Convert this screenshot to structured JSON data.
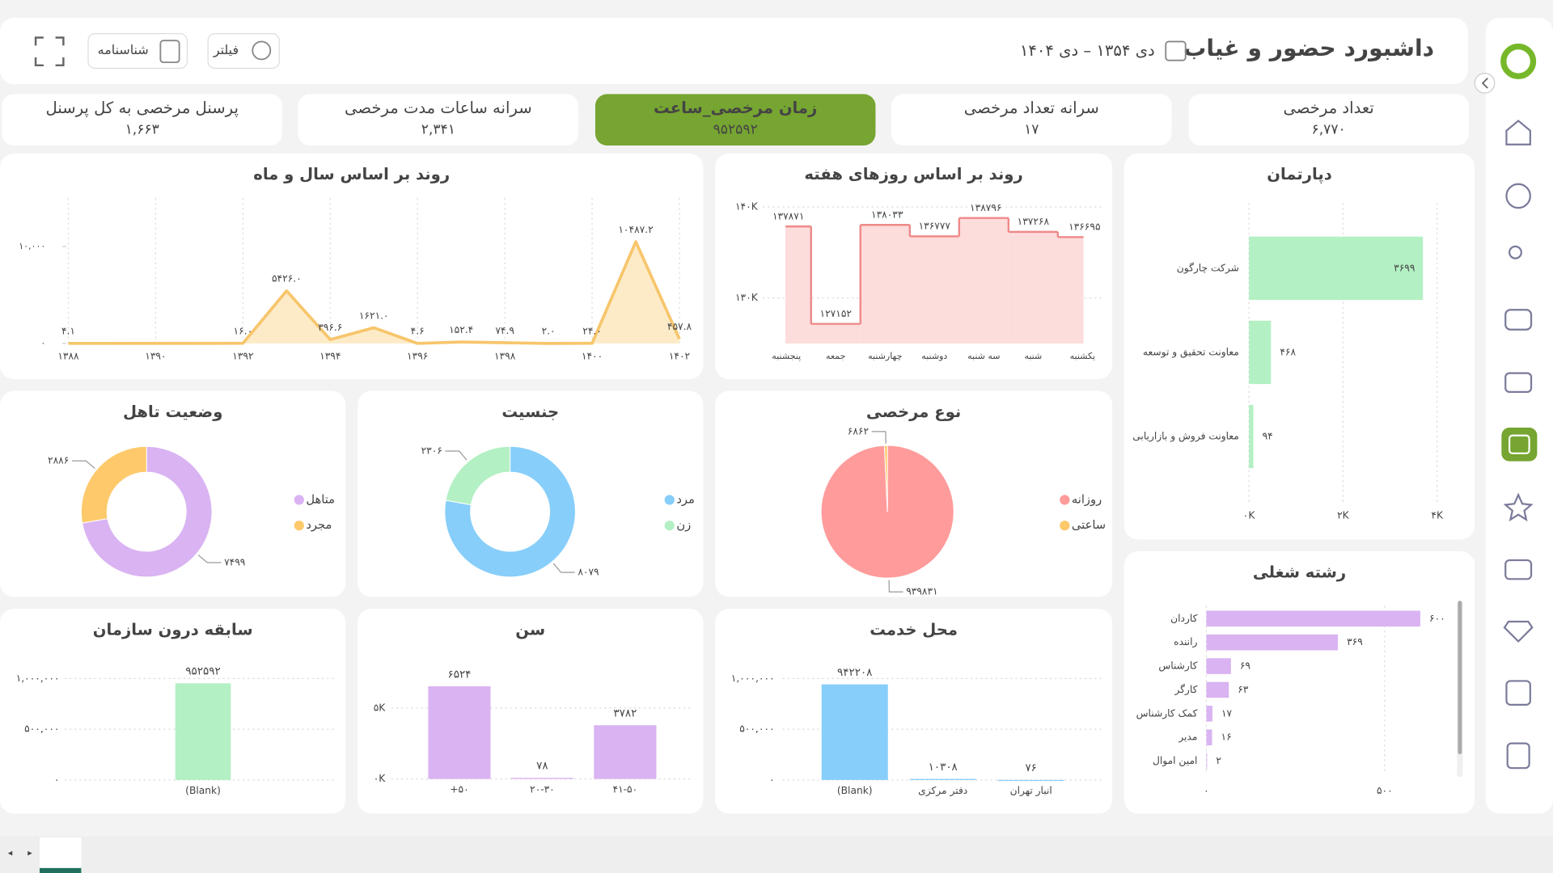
{
  "header": {
    "title": "داشبورد حضور و غیاب",
    "date_range": "دی ۱۳۵۴ – دی ۱۴۰۴",
    "buttons": [
      "فیلتر",
      "شناسنامه"
    ]
  },
  "kpis": [
    {
      "label": "تعداد مرخصی",
      "value": "۶,۷۷۰"
    },
    {
      "label": "سرانه تعداد مرخصی",
      "value": "۱۷"
    },
    {
      "label": "زمان مرخصی_ساعت",
      "value": "۹۵۲۵۹۲",
      "active": true
    },
    {
      "label": "سرانه ساعات مدت مرخصی",
      "value": "۲,۳۴۱"
    },
    {
      "label": "پرسنل مرخصی به کل پرسنل",
      "value": "۱,۶۶۳"
    }
  ],
  "chart_data": [
    {
      "type": "area",
      "title": "روند بر اساس سال و ماه",
      "x": [
        1388,
        1392,
        1393,
        1394,
        1395,
        1396,
        1397,
        1398,
        1399,
        1400,
        1401,
        1402
      ],
      "values": [
        4.1,
        16.0,
        5426.0,
        396.6,
        1621.0,
        4.6,
        152.4,
        74.9,
        2.0,
        24.0,
        10487.2,
        457.8
      ],
      "value_labels": [
        "۴.۱",
        "۱۶.۰",
        "۵۴۲۶.۰",
        "۳۹۶.۶",
        "۱۶۲۱.۰",
        "۴.۶",
        "۱۵۲.۴",
        "۷۴.۹",
        "۲.۰",
        "۲۴.۰",
        "۱۰۴۸۷.۲",
        "۴۵۷.۸"
      ],
      "color": "#f7c56b",
      "fill": "#fdebc8",
      "xlim": [
        1388,
        1402
      ],
      "xticks": [
        {
          "value": 1388,
          "label": "۱۳۸۸"
        },
        {
          "value": 1390,
          "label": "۱۳۹۰"
        },
        {
          "value": 1392,
          "label": "۱۳۹۲"
        },
        {
          "value": 1394,
          "label": "۱۳۹۴"
        },
        {
          "value": 1396,
          "label": "۱۳۹۶"
        },
        {
          "value": 1398,
          "label": "۱۳۹۸"
        },
        {
          "value": 1400,
          "label": "۱۴۰۰"
        },
        {
          "value": 1402,
          "label": "۱۴۰۲"
        }
      ],
      "ylim": [
        0,
        15000
      ],
      "yticks": [
        {
          "value": 0,
          "label": "۰"
        },
        {
          "value": 10000,
          "label": "۱۰,۰۰۰"
        }
      ],
      "grid": true
    },
    {
      "type": "step",
      "title": "روند بر اساس روزهای هفته",
      "categories": [
        "پنجشنبه",
        "جمعه",
        "چهارشنبه",
        "دوشنبه",
        "سه شنبه",
        "شنبه",
        "یکشنبه"
      ],
      "values": [
        137871,
        127152,
        138033,
        136777,
        138796,
        137268,
        136695
      ],
      "value_labels": [
        "۱۳۷۸۷۱",
        "۱۲۷۱۵۲",
        "۱۳۸۰۳۳",
        "۱۳۶۷۷۷",
        "۱۳۸۷۹۶",
        "۱۳۷۲۶۸",
        "۱۳۶۶۹۵"
      ],
      "color": "#ee8a8a",
      "fill": "#fddcdc",
      "ylim": [
        125000,
        141000
      ],
      "yticks": [
        {
          "value": 130000,
          "label": "۱۳۰K"
        },
        {
          "value": 140000,
          "label": "۱۴۰K"
        }
      ],
      "grid": true
    },
    {
      "type": "hbar",
      "title": "دپارتمان",
      "categories": [
        "شرکت چارگون",
        "معاونت تحقیق و توسعه",
        "معاونت فروش و بازاریابی"
      ],
      "values": [
        3699,
        468,
        94
      ],
      "value_labels": [
        "۳۶۹۹",
        "۴۶۸",
        "۹۴"
      ],
      "color": "#b3f0c3",
      "xlim": [
        0,
        4000
      ],
      "xticks": [
        {
          "value": 0,
          "label": "۰K"
        },
        {
          "value": 2000,
          "label": "۲K"
        },
        {
          "value": 4000,
          "label": "۴K"
        }
      ],
      "grid": true
    },
    {
      "type": "pie",
      "title": "نوع مرخصی",
      "categories": [
        "روزانه",
        "ساعتی"
      ],
      "values": [
        939831,
        6862
      ],
      "value_labels": [
        "۹۳۹۸۳۱",
        "۶۸۶۲"
      ],
      "colors": [
        "#ff9b9b",
        "#fdc96b"
      ],
      "legend": "right"
    },
    {
      "type": "donut",
      "title": "جنسیت",
      "categories": [
        "مرد",
        "زن"
      ],
      "values": [
        8079,
        2306
      ],
      "value_labels": [
        "۸۰۷۹",
        "۲۳۰۶"
      ],
      "colors": [
        "#87cefa",
        "#b3f0c3"
      ],
      "legend": "right"
    },
    {
      "type": "donut",
      "title": "وضعیت تاهل",
      "categories": [
        "متاهل",
        "مجرد"
      ],
      "values": [
        7499,
        2886
      ],
      "value_labels": [
        "۷۴۹۹",
        "۲۸۸۶"
      ],
      "colors": [
        "#d9b3f2",
        "#fdc96b"
      ],
      "legend": "right"
    },
    {
      "type": "hbar",
      "title": "رشته شغلی",
      "categories": [
        "کاردان",
        "راننده",
        "کارشناس",
        "کارگر",
        "کمک کارشناس",
        "مدیر",
        "امین اموال"
      ],
      "values": [
        600,
        369,
        69,
        63,
        17,
        16,
        2
      ],
      "value_labels": [
        "۶۰۰",
        "۳۶۹",
        "۶۹",
        "۶۳",
        "۱۷",
        "۱۶",
        "۲"
      ],
      "color": "#d9b3f2",
      "xlim": [
        0,
        700
      ],
      "xticks": [
        {
          "value": 0,
          "label": "۰"
        },
        {
          "value": 500,
          "label": "۵۰۰"
        }
      ],
      "grid": true
    },
    {
      "type": "bar",
      "title": "سابقه درون سازمان",
      "categories": [
        "(Blank)"
      ],
      "values": [
        952592
      ],
      "value_labels": [
        "۹۵۲۵۹۲"
      ],
      "color": "#b3f0c3",
      "ylim": [
        0,
        1200000
      ],
      "yticks": [
        {
          "value": 0,
          "label": "۰"
        },
        {
          "value": 500000,
          "label": "۵۰۰,۰۰۰"
        },
        {
          "value": 1000000,
          "label": "۱,۰۰۰,۰۰۰"
        }
      ],
      "grid": true
    },
    {
      "type": "bar",
      "title": "سن",
      "categories": [
        "+۵۰",
        "۲۰-۳۰",
        "۴۱-۵۰"
      ],
      "values": [
        6524,
        78,
        3782
      ],
      "value_labels": [
        "۶۵۲۴",
        "۷۸",
        "۳۷۸۲"
      ],
      "color": "#d9b3f2",
      "ylim": [
        0,
        8500
      ],
      "yticks": [
        {
          "value": 0,
          "label": "۰K"
        },
        {
          "value": 5000,
          "label": "۵K"
        }
      ],
      "grid": true
    },
    {
      "type": "bar",
      "title": "محل خدمت",
      "categories": [
        "(Blank)",
        "دفتر مرکزی",
        "انبار تهران"
      ],
      "values": [
        942208,
        10308,
        76
      ],
      "value_labels": [
        "۹۴۲۲۰۸",
        "۱۰۳۰۸",
        "۷۶"
      ],
      "color": "#87cefa",
      "ylim": [
        0,
        1200000
      ],
      "yticks": [
        {
          "value": 0,
          "label": "۰"
        },
        {
          "value": 500000,
          "label": "۵۰۰,۰۰۰"
        },
        {
          "value": 1000000,
          "label": "۱,۰۰۰,۰۰۰"
        }
      ],
      "grid": true
    }
  ]
}
